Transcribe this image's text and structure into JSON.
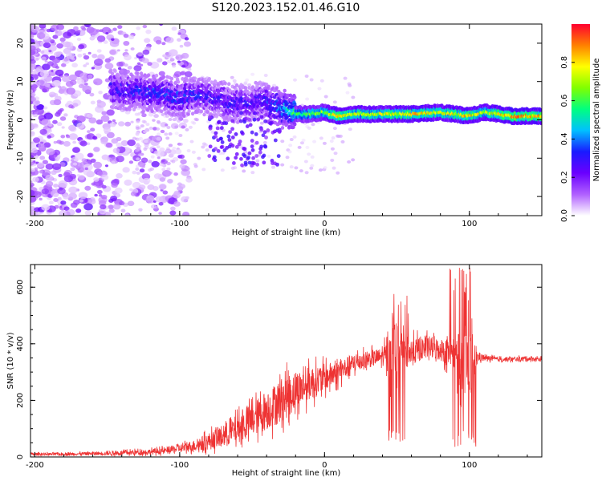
{
  "figure": {
    "title": "S120.2023.152.01.46.G10"
  },
  "chart_data": [
    {
      "type": "heatmap",
      "title": "",
      "xlabel": "Height of straight line (km)",
      "ylabel": "Frequency (Hz)",
      "xlim": [
        -203,
        150
      ],
      "ylim": [
        -25,
        25
      ],
      "xticks": [
        -200,
        -100,
        0,
        100
      ],
      "yticks": [
        -20,
        -10,
        0,
        10,
        20
      ],
      "colorbar": {
        "label": "Normalized spectral amplitude",
        "range": [
          0,
          1
        ],
        "ticks": [
          0.0,
          0.2,
          0.4,
          0.6,
          0.8
        ],
        "colormap": [
          "#ffffff",
          "#b060ff",
          "#6a00ff",
          "#1a1aff",
          "#00c0ff",
          "#00ff80",
          "#80ff00",
          "#ffff00",
          "#ff8000",
          "#ff0030"
        ]
      },
      "ridge": {
        "description_points_x": [
          -145,
          -120,
          -100,
          -80,
          -60,
          -45,
          -30,
          -20,
          -10,
          0,
          10,
          20,
          40,
          60,
          80,
          100,
          110,
          130,
          150
        ],
        "frequency_hz": [
          8,
          7,
          6,
          6,
          4,
          5,
          3,
          1.5,
          1.5,
          2,
          1,
          1.5,
          1.5,
          1.5,
          2,
          1,
          2,
          1,
          1
        ],
        "peak_amplitude": [
          0.3,
          0.35,
          0.35,
          0.3,
          0.3,
          0.3,
          0.45,
          0.6,
          0.65,
          0.7,
          0.85,
          0.75,
          0.75,
          0.85,
          0.75,
          0.85,
          0.75,
          0.9,
          0.85
        ]
      },
      "grid": false
    },
    {
      "type": "line",
      "title": "",
      "xlabel": "Height of straight line (km)",
      "ylabel": "SNR (10 * v/v)",
      "xlim": [
        -203,
        150
      ],
      "ylim": [
        0,
        680
      ],
      "xticks": [
        -200,
        -100,
        0,
        100
      ],
      "yticks": [
        0,
        200,
        400,
        600
      ],
      "series": [
        {
          "color": "#ee3333",
          "x": [
            -203,
            -180,
            -160,
            -140,
            -120,
            -110,
            -100,
            -90,
            -80,
            -70,
            -60,
            -50,
            -40,
            -30,
            -20,
            -10,
            0,
            10,
            20,
            30,
            40,
            45,
            50,
            55,
            60,
            70,
            80,
            90,
            95,
            100,
            105,
            110,
            120,
            130,
            140,
            150
          ],
          "values": [
            10,
            10,
            12,
            14,
            18,
            22,
            30,
            40,
            55,
            75,
            100,
            130,
            165,
            200,
            235,
            260,
            280,
            300,
            330,
            345,
            355,
            350,
            340,
            360,
            370,
            390,
            380,
            360,
            340,
            330,
            355,
            350,
            345,
            345,
            348,
            345
          ],
          "noise_amplitude": [
            5,
            5,
            6,
            8,
            10,
            12,
            15,
            20,
            30,
            40,
            50,
            60,
            70,
            80,
            70,
            60,
            50,
            40,
            35,
            30,
            30,
            80,
            150,
            60,
            50,
            40,
            40,
            60,
            150,
            160,
            20,
            10,
            8,
            8,
            8,
            8
          ]
        }
      ],
      "annotations": [
        {
          "x_range": [
            44,
            58
          ],
          "min": 50,
          "max": 600
        },
        {
          "x_range": [
            85,
            106
          ],
          "min": 35,
          "max": 670
        }
      ],
      "grid": false
    }
  ]
}
